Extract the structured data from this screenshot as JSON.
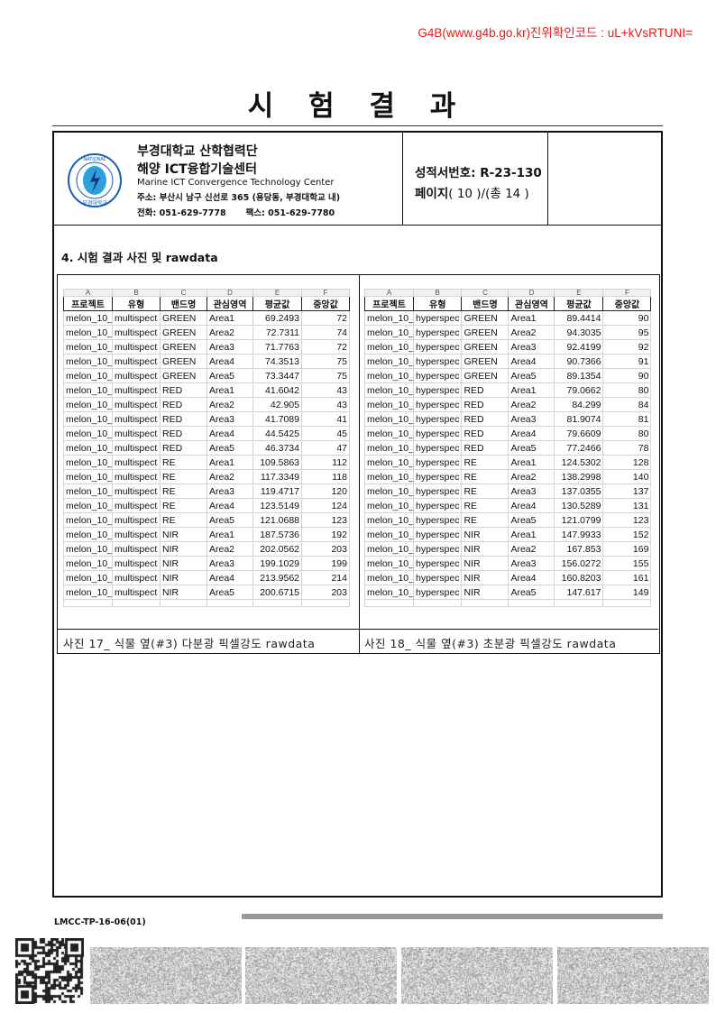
{
  "verification": "G4B(www.g4b.go.kr)진위확인코드 : uL+kVsRTUNI=",
  "title": "시 험 결 과",
  "header": {
    "org_line1": "부경대학교 산학협력단",
    "org_line2": "해양 ICT융합기술센터",
    "org_english": "Marine ICT Convergence Technology Center",
    "address": "주소: 부산시 남구 신선로 365 (용당동, 부경대학교 내)",
    "phone": "전화: 051-629-7778",
    "fax": "팩스:  051-629-7780",
    "logo_text": "PUKYONG NATIONAL UNIVERSITY 부경대학교",
    "report_no": "성적서번호: R-23-130",
    "page_label": "페이지",
    "page_value": "( 10 )/(총 14 )"
  },
  "section_title": "4. 시험 결과 사진 및 rawdata",
  "tables": [
    {
      "caption": "사진 17_ 식물 옆(#3) 다분광 픽셀강도 rawdata",
      "col_letters": [
        "A",
        "B",
        "C",
        "D",
        "E",
        "F"
      ],
      "headers": [
        "프로젝트",
        "유형",
        "밴드명",
        "관심영역",
        "평균값",
        "중앙값"
      ],
      "rows": [
        [
          "melon_10_",
          "multispect",
          "GREEN",
          "Area1",
          "69.2493",
          "72"
        ],
        [
          "melon_10_",
          "multispect",
          "GREEN",
          "Area2",
          "72.7311",
          "74"
        ],
        [
          "melon_10_",
          "multispect",
          "GREEN",
          "Area3",
          "71.7763",
          "72"
        ],
        [
          "melon_10_",
          "multispect",
          "GREEN",
          "Area4",
          "74.3513",
          "75"
        ],
        [
          "melon_10_",
          "multispect",
          "GREEN",
          "Area5",
          "73.3447",
          "75"
        ],
        [
          "melon_10_",
          "multispect",
          "RED",
          "Area1",
          "41.6042",
          "43"
        ],
        [
          "melon_10_",
          "multispect",
          "RED",
          "Area2",
          "42.905",
          "43"
        ],
        [
          "melon_10_",
          "multispect",
          "RED",
          "Area3",
          "41.7089",
          "41"
        ],
        [
          "melon_10_",
          "multispect",
          "RED",
          "Area4",
          "44.5425",
          "45"
        ],
        [
          "melon_10_",
          "multispect",
          "RED",
          "Area5",
          "46.3734",
          "47"
        ],
        [
          "melon_10_",
          "multispect",
          "RE",
          "Area1",
          "109.5863",
          "112"
        ],
        [
          "melon_10_",
          "multispect",
          "RE",
          "Area2",
          "117.3349",
          "118"
        ],
        [
          "melon_10_",
          "multispect",
          "RE",
          "Area3",
          "119.4717",
          "120"
        ],
        [
          "melon_10_",
          "multispect",
          "RE",
          "Area4",
          "123.5149",
          "124"
        ],
        [
          "melon_10_",
          "multispect",
          "RE",
          "Area5",
          "121.0688",
          "123"
        ],
        [
          "melon_10_",
          "multispect",
          "NIR",
          "Area1",
          "187.5736",
          "192"
        ],
        [
          "melon_10_",
          "multispect",
          "NIR",
          "Area2",
          "202.0562",
          "203"
        ],
        [
          "melon_10_",
          "multispect",
          "NIR",
          "Area3",
          "199.1029",
          "199"
        ],
        [
          "melon_10_",
          "multispect",
          "NIR",
          "Area4",
          "213.9562",
          "214"
        ],
        [
          "melon_10_",
          "multispect",
          "NIR",
          "Area5",
          "200.6715",
          "203"
        ]
      ]
    },
    {
      "caption": "사진 18_ 식물 옆(#3) 초분광 픽셀강도 rawdata",
      "col_letters": [
        "A",
        "B",
        "C",
        "D",
        "E",
        "F"
      ],
      "headers": [
        "프로젝트",
        "유형",
        "밴드명",
        "관심영역",
        "평균값",
        "중앙값"
      ],
      "rows": [
        [
          "melon_10_",
          "hyperspec",
          "GREEN",
          "Area1",
          "89.4414",
          "90"
        ],
        [
          "melon_10_",
          "hyperspec",
          "GREEN",
          "Area2",
          "94.3035",
          "95"
        ],
        [
          "melon_10_",
          "hyperspec",
          "GREEN",
          "Area3",
          "92.4199",
          "92"
        ],
        [
          "melon_10_",
          "hyperspec",
          "GREEN",
          "Area4",
          "90.7366",
          "91"
        ],
        [
          "melon_10_",
          "hyperspec",
          "GREEN",
          "Area5",
          "89.1354",
          "90"
        ],
        [
          "melon_10_",
          "hyperspec",
          "RED",
          "Area1",
          "79.0662",
          "80"
        ],
        [
          "melon_10_",
          "hyperspec",
          "RED",
          "Area2",
          "84.299",
          "84"
        ],
        [
          "melon_10_",
          "hyperspec",
          "RED",
          "Area3",
          "81.9074",
          "81"
        ],
        [
          "melon_10_",
          "hyperspec",
          "RED",
          "Area4",
          "79.6609",
          "80"
        ],
        [
          "melon_10_",
          "hyperspec",
          "RED",
          "Area5",
          "77.2466",
          "78"
        ],
        [
          "melon_10_",
          "hyperspec",
          "RE",
          "Area1",
          "124.5302",
          "128"
        ],
        [
          "melon_10_",
          "hyperspec",
          "RE",
          "Area2",
          "138.2998",
          "140"
        ],
        [
          "melon_10_",
          "hyperspec",
          "RE",
          "Area3",
          "137.0355",
          "137"
        ],
        [
          "melon_10_",
          "hyperspec",
          "RE",
          "Area4",
          "130.5289",
          "131"
        ],
        [
          "melon_10_",
          "hyperspec",
          "RE",
          "Area5",
          "121.0799",
          "123"
        ],
        [
          "melon_10_",
          "hyperspec",
          "NIR",
          "Area1",
          "147.9933",
          "152"
        ],
        [
          "melon_10_",
          "hyperspec",
          "NIR",
          "Area2",
          "167.853",
          "169"
        ],
        [
          "melon_10_",
          "hyperspec",
          "NIR",
          "Area3",
          "156.0272",
          "155"
        ],
        [
          "melon_10_",
          "hyperspec",
          "NIR",
          "Area4",
          "160.8203",
          "161"
        ],
        [
          "melon_10_",
          "hyperspec",
          "NIR",
          "Area5",
          "147.617",
          "149"
        ]
      ]
    }
  ],
  "footer": {
    "form_code": "LMCC-TP-16-06(01)"
  },
  "colors": {
    "verification": "#e0201c",
    "logo_blue": "#1a5fb4"
  }
}
